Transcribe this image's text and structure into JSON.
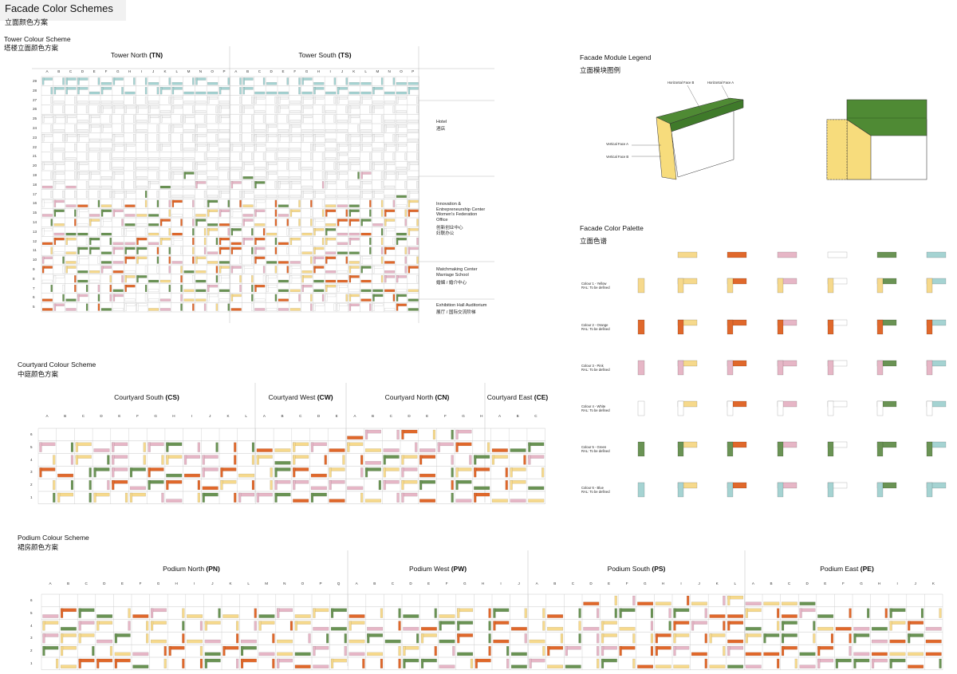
{
  "header": {
    "title": "Facade Color Schemes",
    "subtitle": "立面颜色方案"
  },
  "colors": {
    "yellow": "#f6d98c",
    "orange": "#e0682b",
    "pink": "#e6b6c6",
    "white": "#ffffff",
    "green": "#6a9354",
    "blue": "#a5d3d2",
    "grid": "#c8c8c8",
    "legend_green": "#4f8a34",
    "legend_yellow": "#f7dc7c"
  },
  "tower": {
    "title": "Tower Colour Scheme",
    "title_cn": "塔楼立面颜色方案",
    "groups": [
      {
        "label": "Tower North",
        "code": "(TN)"
      },
      {
        "label": "Tower South",
        "code": "(TS)"
      }
    ],
    "columns": [
      "A",
      "B",
      "C",
      "D",
      "E",
      "F",
      "G",
      "H",
      "I",
      "J",
      "K",
      "L",
      "M",
      "N",
      "O",
      "P",
      "A",
      "B",
      "C",
      "D",
      "E",
      "F",
      "G",
      "H",
      "I",
      "J",
      "K",
      "L",
      "M",
      "N",
      "O",
      "P"
    ],
    "rows": [
      "29",
      "28",
      "27",
      "26",
      "25",
      "24",
      "23",
      "22",
      "21",
      "20",
      "19",
      "18",
      "17",
      "16",
      "15",
      "14",
      "13",
      "12",
      "11",
      "10",
      "9",
      "8",
      "7",
      "6",
      "5"
    ],
    "uses": [
      {
        "en": "Hotel",
        "cn": "酒店"
      },
      {
        "en": "Innovation & Entrepreneurship Center Women's Federation Office",
        "cn": "创新创业中心 妇联办公"
      },
      {
        "en": "Matchmaking Center Marriage School",
        "cn": "婚姻 / 婚介中心"
      },
      {
        "en": "Exhibition Hall Auditorium",
        "cn": "展厅 / 国际交流阶梯"
      }
    ]
  },
  "courtyard": {
    "title": "Courtyard Colour Scheme",
    "title_cn": "中庭颜色方案",
    "groups": [
      {
        "label": "Courtyard South",
        "code": "(CS)"
      },
      {
        "label": "Courtyard West",
        "code": "(CW)"
      },
      {
        "label": "Courtyard North",
        "code": "(CN)"
      },
      {
        "label": "Courtyard East",
        "code": "(CE)"
      }
    ],
    "columns": [
      "A",
      "B",
      "C",
      "D",
      "E",
      "F",
      "G",
      "H",
      "I",
      "J",
      "K",
      "L",
      "A",
      "B",
      "C",
      "D",
      "E",
      "A",
      "B",
      "C",
      "D",
      "E",
      "F",
      "G",
      "H",
      "A",
      "B",
      "C"
    ],
    "rows": [
      "6",
      "5",
      "4",
      "3",
      "2",
      "1"
    ]
  },
  "podium": {
    "title": "Podium Colour Scheme",
    "title_cn": "裙房颜色方案",
    "groups": [
      {
        "label": "Podium North",
        "code": "(PN)"
      },
      {
        "label": "Podium West",
        "code": "(PW)"
      },
      {
        "label": "Podium South",
        "code": "(PS)"
      },
      {
        "label": "Podium East",
        "code": "(PE)"
      }
    ],
    "columns": [
      "A",
      "B",
      "C",
      "D",
      "E",
      "F",
      "G",
      "H",
      "I",
      "J",
      "K",
      "L",
      "M",
      "N",
      "O",
      "P",
      "Q",
      "A",
      "B",
      "C",
      "D",
      "E",
      "F",
      "G",
      "H",
      "I",
      "J",
      "A",
      "B",
      "C",
      "D",
      "E",
      "F",
      "G",
      "H",
      "I",
      "J",
      "K",
      "L",
      "A",
      "B",
      "C",
      "D",
      "E",
      "F",
      "G",
      "H",
      "I",
      "J",
      "K"
    ],
    "rows": [
      "6",
      "5",
      "4",
      "3",
      "2",
      "1"
    ]
  },
  "legend": {
    "title": "Facade Module Legend",
    "title_cn": "立面模块图例",
    "labels": {
      "hb": "Horizontal Face B",
      "ha": "Horizontal Face A",
      "va": "Vertical Face A",
      "vb": "Vertical Face B"
    }
  },
  "palette": {
    "title": "Facade Color Palette",
    "title_cn": "立面色谱",
    "swatches": [
      {
        "name": "Colour 1 - Yellow",
        "ral": "RAL: To be defined",
        "color": "yellow"
      },
      {
        "name": "Colour 2 - Orange",
        "ral": "RAL: To be defined",
        "color": "orange"
      },
      {
        "name": "Colour 3 - Pink",
        "ral": "RAL: To be defined",
        "color": "pink"
      },
      {
        "name": "Colour 4 - White",
        "ral": "RAL: To be defined",
        "color": "white"
      },
      {
        "name": "Colour 5 - Green",
        "ral": "RAL: To be defined",
        "color": "green"
      },
      {
        "name": "Colour 6 - Blue",
        "ral": "RAL: To be defined",
        "color": "blue"
      }
    ]
  }
}
